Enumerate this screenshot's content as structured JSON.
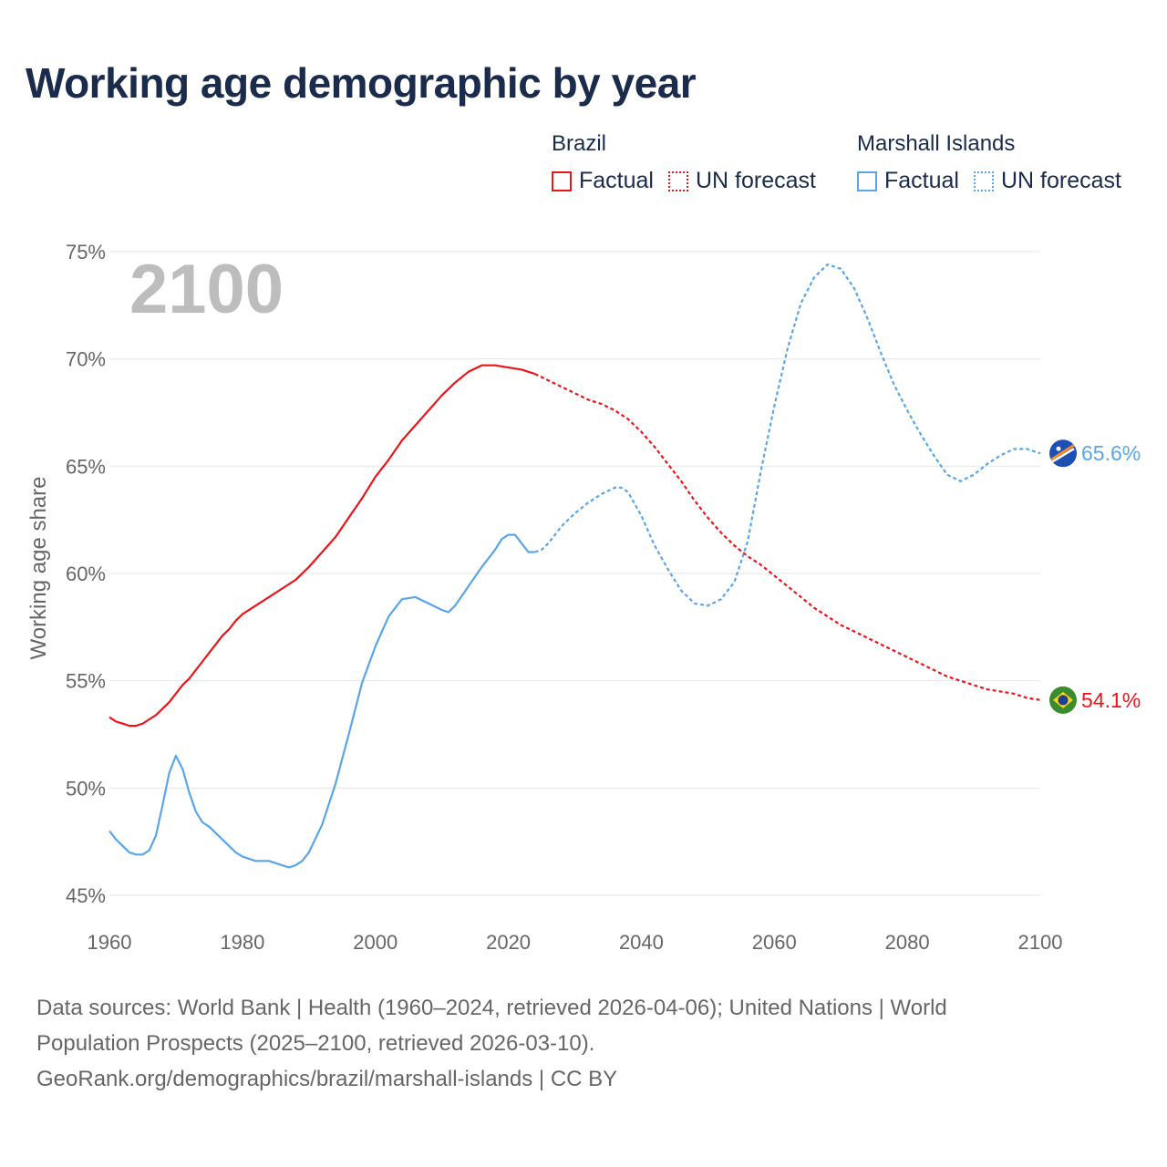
{
  "title": "Working age demographic by year",
  "legend": {
    "groups": [
      {
        "name": "Brazil",
        "color": "#e8161b",
        "factual": "Factual",
        "forecast": "UN forecast"
      },
      {
        "name": "Marshall Islands",
        "color": "#5aa5e6",
        "factual": "Factual",
        "forecast": "UN forecast"
      }
    ]
  },
  "year_label": "2100",
  "footer": {
    "line1": "Data sources: World Bank | Health (1960–2024, retrieved 2026-04-06); United Nations | World",
    "line2": "Population Prospects (2025–2100, retrieved 2026-03-10).",
    "line3": "GeoRank.org/demographics/brazil/marshall-islands | CC BY"
  },
  "chart_data": {
    "type": "line",
    "title": "Working age demographic by year",
    "xlabel": "",
    "ylabel": "Working age share",
    "xlim": [
      1960,
      2100
    ],
    "ylim": [
      45,
      75
    ],
    "x_ticks": [
      1960,
      1980,
      2000,
      2020,
      2040,
      2060,
      2080,
      2100
    ],
    "y_ticks": [
      45,
      50,
      55,
      60,
      65,
      70,
      75
    ],
    "y_tick_labels": [
      "45%",
      "50%",
      "55%",
      "60%",
      "65%",
      "70%",
      "75%"
    ],
    "forecast_start": 2024,
    "series": [
      {
        "name": "Brazil",
        "color": "#e8161b",
        "end_label": "54.1%",
        "flag": "brazil-flag",
        "points": [
          [
            1960,
            53.3
          ],
          [
            1961,
            53.1
          ],
          [
            1962,
            53.0
          ],
          [
            1963,
            52.9
          ],
          [
            1964,
            52.9
          ],
          [
            1965,
            53.0
          ],
          [
            1966,
            53.2
          ],
          [
            1967,
            53.4
          ],
          [
            1968,
            53.7
          ],
          [
            1969,
            54.0
          ],
          [
            1970,
            54.4
          ],
          [
            1971,
            54.8
          ],
          [
            1972,
            55.1
          ],
          [
            1973,
            55.5
          ],
          [
            1974,
            55.9
          ],
          [
            1975,
            56.3
          ],
          [
            1976,
            56.7
          ],
          [
            1977,
            57.1
          ],
          [
            1978,
            57.4
          ],
          [
            1979,
            57.8
          ],
          [
            1980,
            58.1
          ],
          [
            1982,
            58.5
          ],
          [
            1984,
            58.9
          ],
          [
            1986,
            59.3
          ],
          [
            1988,
            59.7
          ],
          [
            1990,
            60.3
          ],
          [
            1992,
            61.0
          ],
          [
            1994,
            61.7
          ],
          [
            1996,
            62.6
          ],
          [
            1998,
            63.5
          ],
          [
            2000,
            64.5
          ],
          [
            2002,
            65.3
          ],
          [
            2004,
            66.2
          ],
          [
            2006,
            66.9
          ],
          [
            2008,
            67.6
          ],
          [
            2010,
            68.3
          ],
          [
            2012,
            68.9
          ],
          [
            2014,
            69.4
          ],
          [
            2016,
            69.7
          ],
          [
            2018,
            69.7
          ],
          [
            2020,
            69.6
          ],
          [
            2022,
            69.5
          ],
          [
            2024,
            69.3
          ],
          [
            2026,
            69.0
          ],
          [
            2028,
            68.7
          ],
          [
            2030,
            68.4
          ],
          [
            2032,
            68.1
          ],
          [
            2034,
            67.9
          ],
          [
            2036,
            67.6
          ],
          [
            2038,
            67.2
          ],
          [
            2040,
            66.6
          ],
          [
            2042,
            65.9
          ],
          [
            2044,
            65.1
          ],
          [
            2046,
            64.3
          ],
          [
            2048,
            63.4
          ],
          [
            2050,
            62.6
          ],
          [
            2052,
            61.9
          ],
          [
            2054,
            61.3
          ],
          [
            2056,
            60.8
          ],
          [
            2058,
            60.4
          ],
          [
            2060,
            59.9
          ],
          [
            2062,
            59.4
          ],
          [
            2064,
            58.9
          ],
          [
            2066,
            58.4
          ],
          [
            2068,
            58.0
          ],
          [
            2070,
            57.6
          ],
          [
            2072,
            57.3
          ],
          [
            2074,
            57.0
          ],
          [
            2076,
            56.7
          ],
          [
            2078,
            56.4
          ],
          [
            2080,
            56.1
          ],
          [
            2082,
            55.8
          ],
          [
            2084,
            55.5
          ],
          [
            2086,
            55.2
          ],
          [
            2088,
            55.0
          ],
          [
            2090,
            54.8
          ],
          [
            2092,
            54.6
          ],
          [
            2094,
            54.5
          ],
          [
            2096,
            54.4
          ],
          [
            2098,
            54.2
          ],
          [
            2100,
            54.1
          ]
        ]
      },
      {
        "name": "Marshall Islands",
        "color": "#5aa5e6",
        "end_label": "65.6%",
        "flag": "marshall-islands-flag",
        "points": [
          [
            1960,
            48.0
          ],
          [
            1961,
            47.6
          ],
          [
            1962,
            47.3
          ],
          [
            1963,
            47.0
          ],
          [
            1964,
            46.9
          ],
          [
            1965,
            46.9
          ],
          [
            1966,
            47.1
          ],
          [
            1967,
            47.8
          ],
          [
            1968,
            49.2
          ],
          [
            1969,
            50.7
          ],
          [
            1970,
            51.5
          ],
          [
            1971,
            50.9
          ],
          [
            1972,
            49.8
          ],
          [
            1973,
            48.9
          ],
          [
            1974,
            48.4
          ],
          [
            1975,
            48.2
          ],
          [
            1976,
            47.9
          ],
          [
            1977,
            47.6
          ],
          [
            1978,
            47.3
          ],
          [
            1979,
            47.0
          ],
          [
            1980,
            46.8
          ],
          [
            1982,
            46.6
          ],
          [
            1984,
            46.6
          ],
          [
            1986,
            46.4
          ],
          [
            1987,
            46.3
          ],
          [
            1988,
            46.4
          ],
          [
            1989,
            46.6
          ],
          [
            1990,
            47.0
          ],
          [
            1992,
            48.3
          ],
          [
            1994,
            50.2
          ],
          [
            1996,
            52.5
          ],
          [
            1998,
            54.9
          ],
          [
            2000,
            56.6
          ],
          [
            2002,
            58.0
          ],
          [
            2004,
            58.8
          ],
          [
            2006,
            58.9
          ],
          [
            2008,
            58.6
          ],
          [
            2010,
            58.3
          ],
          [
            2011,
            58.2
          ],
          [
            2012,
            58.5
          ],
          [
            2014,
            59.4
          ],
          [
            2016,
            60.3
          ],
          [
            2018,
            61.1
          ],
          [
            2019,
            61.6
          ],
          [
            2020,
            61.8
          ],
          [
            2021,
            61.8
          ],
          [
            2023,
            61.0
          ],
          [
            2024,
            61.0
          ],
          [
            2025,
            61.1
          ],
          [
            2026,
            61.4
          ],
          [
            2028,
            62.2
          ],
          [
            2030,
            62.8
          ],
          [
            2032,
            63.3
          ],
          [
            2034,
            63.7
          ],
          [
            2036,
            64.0
          ],
          [
            2037,
            64.0
          ],
          [
            2038,
            63.8
          ],
          [
            2040,
            62.7
          ],
          [
            2042,
            61.3
          ],
          [
            2044,
            60.2
          ],
          [
            2046,
            59.2
          ],
          [
            2048,
            58.6
          ],
          [
            2050,
            58.5
          ],
          [
            2052,
            58.8
          ],
          [
            2054,
            59.6
          ],
          [
            2056,
            61.5
          ],
          [
            2058,
            64.8
          ],
          [
            2060,
            67.8
          ],
          [
            2062,
            70.5
          ],
          [
            2064,
            72.6
          ],
          [
            2066,
            73.8
          ],
          [
            2068,
            74.4
          ],
          [
            2070,
            74.2
          ],
          [
            2072,
            73.3
          ],
          [
            2074,
            71.9
          ],
          [
            2076,
            70.3
          ],
          [
            2078,
            68.8
          ],
          [
            2080,
            67.6
          ],
          [
            2082,
            66.5
          ],
          [
            2084,
            65.5
          ],
          [
            2086,
            64.6
          ],
          [
            2088,
            64.3
          ],
          [
            2090,
            64.6
          ],
          [
            2092,
            65.1
          ],
          [
            2094,
            65.5
          ],
          [
            2096,
            65.8
          ],
          [
            2098,
            65.8
          ],
          [
            2100,
            65.6
          ]
        ]
      }
    ]
  }
}
